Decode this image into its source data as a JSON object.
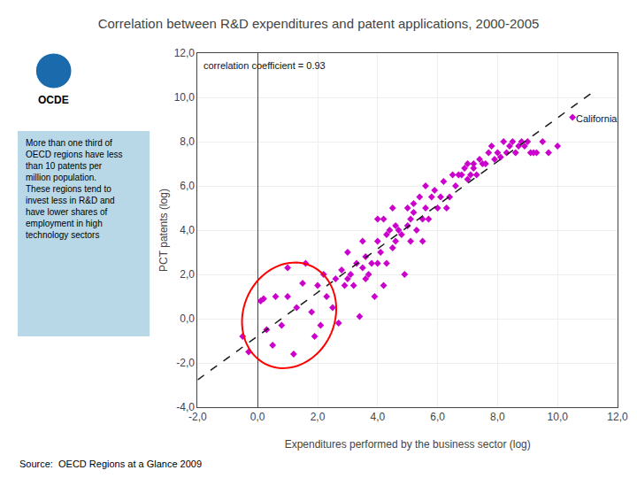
{
  "chart_data": {
    "type": "scatter",
    "title": "Correlation between R&D expenditures and patent applications, 2000-2005",
    "xlabel": "Expenditures performed by the business sector (log)",
    "ylabel": "PCT patents (log)",
    "x": [
      -0.5,
      -0.3,
      0.1,
      0.2,
      0.3,
      0.5,
      0.6,
      0.8,
      1.0,
      1.0,
      1.2,
      1.3,
      1.5,
      1.6,
      1.8,
      1.9,
      2.0,
      2.1,
      2.2,
      2.3,
      2.5,
      2.6,
      2.7,
      2.8,
      2.9,
      3.0,
      3.0,
      3.1,
      3.2,
      3.3,
      3.4,
      3.5,
      3.5,
      3.6,
      3.6,
      3.7,
      3.8,
      3.9,
      4.0,
      4.0,
      4.0,
      4.1,
      4.2,
      4.2,
      4.3,
      4.3,
      4.4,
      4.5,
      4.5,
      4.6,
      4.6,
      4.7,
      4.8,
      4.9,
      5.0,
      5.0,
      5.1,
      5.1,
      5.2,
      5.2,
      5.3,
      5.4,
      5.5,
      5.5,
      5.6,
      5.6,
      5.7,
      5.8,
      5.9,
      6.0,
      6.1,
      6.2,
      6.3,
      6.4,
      6.5,
      6.6,
      6.7,
      6.8,
      6.9,
      7.0,
      7.0,
      7.1,
      7.2,
      7.2,
      7.3,
      7.4,
      7.5,
      7.6,
      7.7,
      7.8,
      7.9,
      8.0,
      8.1,
      8.2,
      8.3,
      8.4,
      8.5,
      8.6,
      8.7,
      8.8,
      8.9,
      9.0,
      9.1,
      9.2,
      9.3,
      9.5,
      9.7,
      10.0,
      10.5
    ],
    "values": [
      -0.8,
      -1.5,
      0.8,
      0.9,
      -0.5,
      -1.2,
      1.0,
      -0.3,
      1.0,
      2.3,
      -1.6,
      0.5,
      1.6,
      2.5,
      0.3,
      -0.8,
      1.5,
      -0.3,
      2.0,
      1.0,
      0.5,
      1.8,
      -0.2,
      2.2,
      1.5,
      1.8,
      3.0,
      2.0,
      1.5,
      2.5,
      0.1,
      2.3,
      3.5,
      1.8,
      2.8,
      2.0,
      2.5,
      1.0,
      3.5,
      4.5,
      2.5,
      3.0,
      1.5,
      4.5,
      2.5,
      3.8,
      4.0,
      3.2,
      5.0,
      3.5,
      4.2,
      4.0,
      3.8,
      2.0,
      4.2,
      5.0,
      4.5,
      3.5,
      5.2,
      4.8,
      4.0,
      5.5,
      4.5,
      3.5,
      5.0,
      6.0,
      4.5,
      5.5,
      5.8,
      5.0,
      5.5,
      6.2,
      5.0,
      5.5,
      6.5,
      6.0,
      6.5,
      6.5,
      6.8,
      6.3,
      7.0,
      6.5,
      7.0,
      6.8,
      6.5,
      7.2,
      7.0,
      7.0,
      7.5,
      7.8,
      7.2,
      7.5,
      7.3,
      8.0,
      7.5,
      7.8,
      8.0,
      7.5,
      7.8,
      8.0,
      7.8,
      8.0,
      7.5,
      7.5,
      7.5,
      8.0,
      7.5,
      7.8,
      9.1
    ],
    "color": "#cc00cc",
    "marker": "diamond",
    "xlim": [
      -2.0,
      12.0
    ],
    "ylim": [
      -4.0,
      12.0
    ],
    "xticks": [
      {
        "value": -2.0,
        "label": "-2,0"
      },
      {
        "value": 0.0,
        "label": "0,0"
      },
      {
        "value": 2.0,
        "label": "2,0"
      },
      {
        "value": 4.0,
        "label": "4,0"
      },
      {
        "value": 6.0,
        "label": "6,0"
      },
      {
        "value": 8.0,
        "label": "8,0"
      },
      {
        "value": 10.0,
        "label": "10,0"
      },
      {
        "value": 12.0,
        "label": "12,0"
      }
    ],
    "yticks": [
      {
        "value": -4.0,
        "label": "-4,0"
      },
      {
        "value": -2.0,
        "label": "-2,0"
      },
      {
        "value": 0.0,
        "label": "0,0"
      },
      {
        "value": 2.0,
        "label": "2,0"
      },
      {
        "value": 4.0,
        "label": "4,0"
      },
      {
        "value": 6.0,
        "label": "6,0"
      },
      {
        "value": 8.0,
        "label": "8,0"
      },
      {
        "value": 10.0,
        "label": "10,0"
      },
      {
        "value": 12.0,
        "label": "12,0"
      }
    ],
    "grid": true,
    "trend_line": {
      "x": [
        -2.0,
        11.2
      ],
      "values": [
        -2.762,
        10.261
      ],
      "color": "#1a1a1a",
      "line_style": "dashed"
    },
    "ellipse": {
      "cx": 1.05,
      "cy": 0.15,
      "rx": 1.55,
      "ry": 2.4,
      "angle": -8,
      "color": "red"
    },
    "annotations": [
      {
        "text": "correlation coefficient = 0.93"
      },
      {
        "text": "California",
        "x": 10.55,
        "y": 9.05
      }
    ],
    "sidebar": {
      "text": "More than one third of OECD regions have less than 10 patents per million population. These regions tend to invest less in R&D and have lower shares of employment in high technology sectors",
      "color": "#b8d8e8"
    },
    "source": "Source:  OECD Regions at a Glance 2009",
    "logo": {
      "text": "OCDE",
      "color": "#1a6aac"
    }
  }
}
